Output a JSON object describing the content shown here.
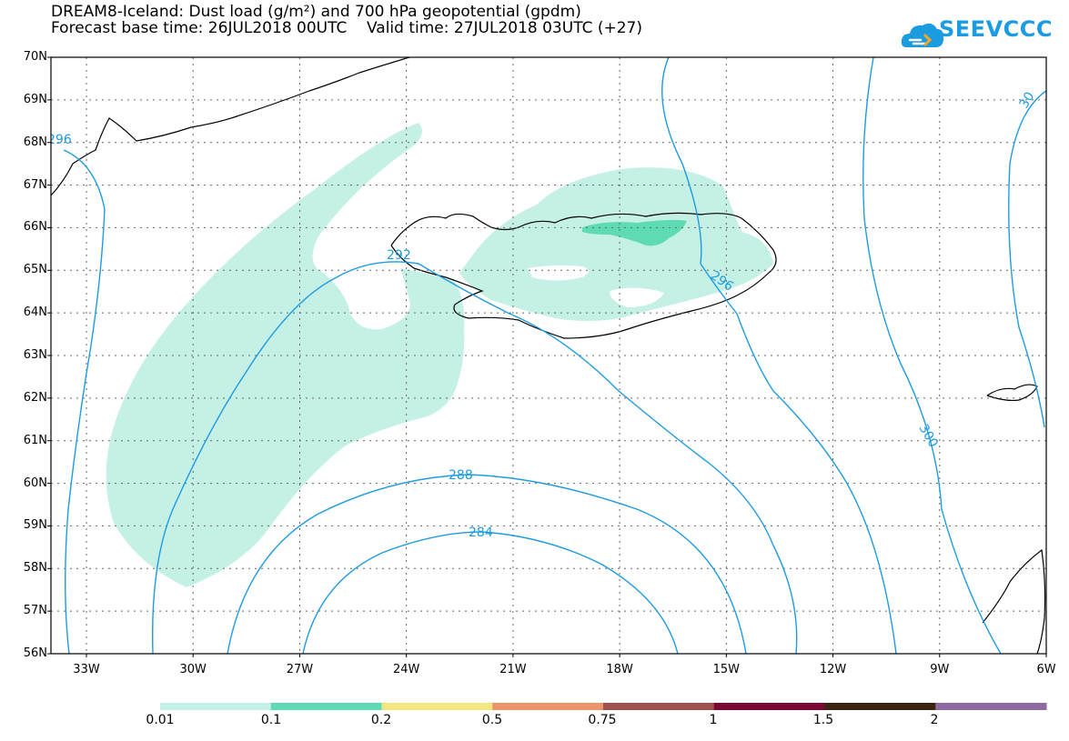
{
  "title": {
    "line1": "DREAM8-Iceland: Dust load (g/m²) and 700 hPa geopotential (gpdm)",
    "line2": "Forecast base time: 26JUL2018 00UTC    Valid time: 27JUL2018 03UTC (+27)"
  },
  "logo": {
    "text": "SEEVCCC",
    "icon": "cloud-icon"
  },
  "map": {
    "lat_labels": [
      "70N",
      "69N",
      "68N",
      "67N",
      "66N",
      "65N",
      "64N",
      "63N",
      "62N",
      "61N",
      "60N",
      "59N",
      "58N",
      "57N",
      "56N"
    ],
    "lon_labels": [
      "33W",
      "30W",
      "27W",
      "24W",
      "21W",
      "18W",
      "15W",
      "12W",
      "9W",
      "6W"
    ],
    "contour_labels": [
      "296",
      "292",
      "296",
      "300",
      "30",
      "288",
      "284"
    ],
    "contour_color": "#1f9be0",
    "coastline_color": "#000000"
  },
  "legend": {
    "labels": [
      "0.01",
      "0.1",
      "0.2",
      "0.5",
      "0.75",
      "1",
      "1.5",
      "2"
    ],
    "colors": [
      "#c4f0e6",
      "#5edbb5",
      "#f5e680",
      "#e9946b",
      "#a1514b",
      "#7c0733",
      "#3b2511",
      "#8e69a3"
    ]
  }
}
